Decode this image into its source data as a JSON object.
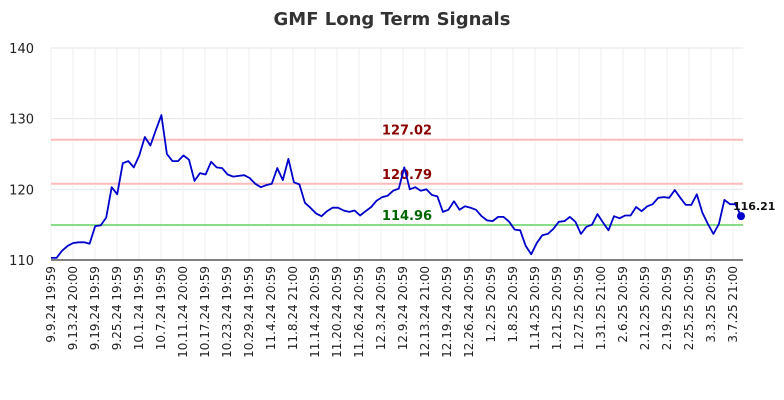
{
  "chart_data": {
    "type": "line",
    "title": "GMF Long Term Signals",
    "xlabel": "",
    "ylabel": "",
    "ylim": [
      110,
      140
    ],
    "yticks": [
      110,
      120,
      130,
      140
    ],
    "grid": true,
    "x_ticks": [
      "9.9.24 19:59",
      "9.13.24 20:00",
      "9.19.24 19:59",
      "9.25.24 19:59",
      "10.1.24 19:59",
      "10.7.24 19:59",
      "10.11.24 20:00",
      "10.17.24 19:59",
      "10.23.24 19:59",
      "10.29.24 19:59",
      "11.4.24 20:59",
      "11.8.24 21:00",
      "11.14.24 20:59",
      "11.20.24 20:59",
      "11.26.24 20:59",
      "12.3.24 20:59",
      "12.9.24 20:59",
      "12.13.24 21:00",
      "12.19.24 20:59",
      "12.26.24 20:59",
      "1.2.25 20:59",
      "1.8.25 20:59",
      "1.14.25 20:59",
      "1.21.25 20:59",
      "1.27.25 20:59",
      "1.31.25 21:00",
      "2.6.25 20:59",
      "2.12.25 20:59",
      "2.19.25 20:59",
      "2.25.25 20:59",
      "3.3.25 20:59",
      "3.7.25 21:00"
    ],
    "series": [
      {
        "color": "#0000cc",
        "values": [
          110.3,
          110.3,
          111.3,
          112.0,
          112.4,
          112.5,
          112.5,
          112.3,
          114.8,
          114.9,
          116.0,
          120.3,
          119.3,
          123.7,
          124.0,
          123.1,
          124.8,
          127.4,
          126.2,
          128.4,
          130.5,
          125.0,
          124.0,
          124.0,
          124.8,
          124.2,
          121.2,
          122.3,
          122.1,
          123.9,
          123.1,
          123.0,
          122.1,
          121.8,
          121.9,
          122.0,
          121.6,
          120.8,
          120.3,
          120.6,
          120.8,
          123.0,
          121.3,
          124.3,
          121.0,
          120.7,
          118.1,
          117.4,
          116.6,
          116.2,
          116.9,
          117.4,
          117.4,
          117.0,
          116.8,
          117.0,
          116.3,
          116.9,
          117.5,
          118.4,
          118.9,
          119.1,
          119.8,
          120.1,
          123.1,
          120.0,
          120.3,
          119.8,
          120.0,
          119.2,
          119.0,
          116.8,
          117.1,
          118.3,
          117.1,
          117.6,
          117.4,
          117.1,
          116.2,
          115.6,
          115.5,
          116.1,
          116.1,
          115.4,
          114.3,
          114.2,
          112.0,
          110.8,
          112.4,
          113.5,
          113.7,
          114.4,
          115.4,
          115.5,
          116.1,
          115.4,
          113.7,
          114.7,
          115.0,
          116.5,
          115.3,
          114.2,
          116.2,
          115.9,
          116.3,
          116.3,
          117.5,
          116.9,
          117.6,
          117.9,
          118.8,
          118.9,
          118.8,
          119.9,
          118.8,
          117.8,
          117.8,
          119.3,
          116.7,
          115.1,
          113.7,
          115.1,
          118.5,
          117.9,
          117.9,
          116.21
        ]
      }
    ],
    "levels": [
      {
        "value": 127.02,
        "label": "127.02",
        "line_color": "#ffbbbb",
        "text_color": "#8b0000"
      },
      {
        "value": 120.79,
        "label": "120.79",
        "line_color": "#ffbbbb",
        "text_color": "#8b0000"
      },
      {
        "value": 114.96,
        "label": "114.96",
        "line_color": "#88dd88",
        "text_color": "#006400"
      }
    ],
    "last_point": {
      "value": 116.21,
      "label": "116.21",
      "color": "#0000cc"
    }
  }
}
